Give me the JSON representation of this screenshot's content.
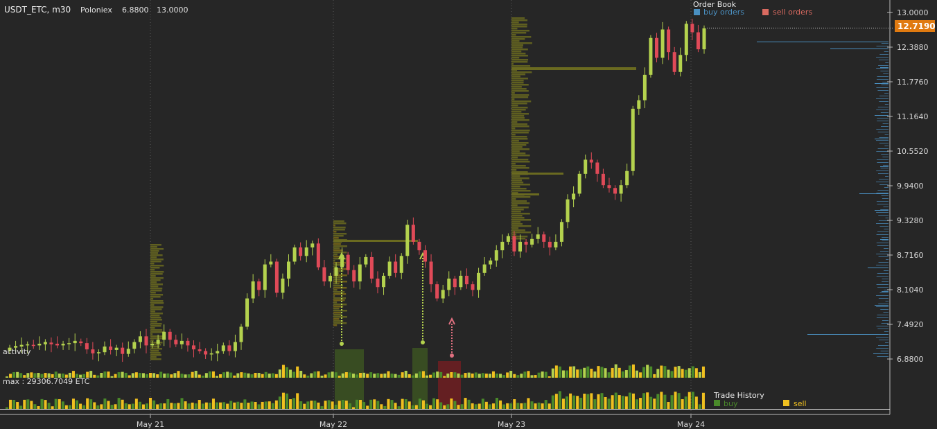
{
  "header": {
    "pair": "USDT_ETC, m30",
    "exchange": "Poloniex",
    "low": "6.8800",
    "high": "13.0000"
  },
  "order_book": {
    "title": "Order Book",
    "buy_label": "buy orders",
    "sell_label": "sell orders",
    "buy_color": "#4a8fc0",
    "sell_color": "#d96a60"
  },
  "trade_history": {
    "title": "Trade History",
    "buy_label": "buy",
    "sell_label": "sell",
    "buy_color": "#4a8a2a",
    "sell_color": "#f0c020"
  },
  "activity_label": "activity",
  "volume_max_label": "max : 29306.7049  ETC",
  "current_price": "12.7190",
  "colors": {
    "background": "#262626",
    "candle_up": "#b4d24e",
    "candle_down": "#e04a58",
    "grid": "#5a5a5a",
    "badge": "#e07a10",
    "profile": "#6a6a20"
  },
  "chart_data": {
    "type": "candlestick",
    "y_ticks": [
      "13.0000",
      "12.3880",
      "11.7760",
      "11.1640",
      "10.5520",
      "9.9400",
      "9.3280",
      "8.7160",
      "8.1040",
      "7.4920",
      "6.8800"
    ],
    "ylim": [
      6.88,
      13.0
    ],
    "x_ticks": [
      "May 21",
      "May 22",
      "May 23",
      "May 24"
    ],
    "candles_open_close": [
      [
        7.03,
        7.08
      ],
      [
        7.08,
        7.11
      ],
      [
        7.1,
        7.13
      ],
      [
        7.12,
        7.14
      ],
      [
        7.13,
        7.11
      ],
      [
        7.12,
        7.15
      ],
      [
        7.14,
        7.18
      ],
      [
        7.17,
        7.14
      ],
      [
        7.15,
        7.12
      ],
      [
        7.12,
        7.15
      ],
      [
        7.15,
        7.16
      ],
      [
        7.16,
        7.2
      ],
      [
        7.19,
        7.16
      ],
      [
        7.16,
        7.05
      ],
      [
        7.05,
        6.98
      ],
      [
        6.98,
        7.0
      ],
      [
        7.0,
        7.1
      ],
      [
        7.1,
        7.04
      ],
      [
        7.04,
        7.08
      ],
      [
        7.08,
        6.97
      ],
      [
        6.97,
        7.06
      ],
      [
        7.06,
        7.18
      ],
      [
        7.18,
        7.28
      ],
      [
        7.28,
        7.12
      ],
      [
        7.12,
        7.15
      ],
      [
        7.15,
        7.22
      ],
      [
        7.22,
        7.36
      ],
      [
        7.36,
        7.22
      ],
      [
        7.22,
        7.14
      ],
      [
        7.14,
        7.2
      ],
      [
        7.2,
        7.12
      ],
      [
        7.12,
        7.05
      ],
      [
        7.05,
        7.02
      ],
      [
        7.02,
        6.96
      ],
      [
        6.96,
        6.98
      ],
      [
        6.98,
        7.02
      ],
      [
        7.02,
        7.12
      ],
      [
        7.12,
        7.02
      ],
      [
        7.02,
        7.18
      ],
      [
        7.18,
        7.45
      ],
      [
        7.45,
        7.95
      ],
      [
        7.95,
        8.25
      ],
      [
        8.25,
        8.1
      ],
      [
        8.1,
        8.55
      ],
      [
        8.55,
        8.6
      ],
      [
        8.6,
        8.05
      ],
      [
        8.05,
        8.3
      ],
      [
        8.3,
        8.6
      ],
      [
        8.6,
        8.85
      ],
      [
        8.85,
        8.7
      ],
      [
        8.7,
        8.85
      ],
      [
        8.85,
        8.92
      ],
      [
        8.92,
        8.5
      ],
      [
        8.5,
        8.25
      ],
      [
        8.25,
        8.35
      ],
      [
        8.35,
        8.5
      ],
      [
        8.5,
        8.72
      ],
      [
        8.72,
        8.45
      ],
      [
        8.45,
        8.25
      ],
      [
        8.25,
        8.55
      ],
      [
        8.55,
        8.68
      ],
      [
        8.68,
        8.3
      ],
      [
        8.3,
        8.15
      ],
      [
        8.15,
        8.35
      ],
      [
        8.35,
        8.6
      ],
      [
        8.6,
        8.4
      ],
      [
        8.4,
        8.7
      ],
      [
        8.7,
        9.25
      ],
      [
        9.25,
        8.95
      ],
      [
        8.95,
        8.8
      ],
      [
        8.8,
        8.6
      ],
      [
        8.6,
        8.2
      ],
      [
        8.2,
        7.95
      ],
      [
        7.95,
        8.1
      ],
      [
        8.1,
        8.3
      ],
      [
        8.3,
        8.15
      ],
      [
        8.15,
        8.35
      ],
      [
        8.35,
        8.2
      ],
      [
        8.2,
        8.1
      ],
      [
        8.1,
        8.4
      ],
      [
        8.4,
        8.55
      ],
      [
        8.55,
        8.62
      ],
      [
        8.62,
        8.8
      ],
      [
        8.8,
        8.95
      ],
      [
        8.95,
        9.05
      ],
      [
        9.05,
        8.78
      ],
      [
        8.78,
        8.95
      ],
      [
        8.95,
        8.9
      ],
      [
        8.9,
        9.0
      ],
      [
        9.0,
        9.08
      ],
      [
        9.08,
        8.95
      ],
      [
        8.95,
        8.85
      ],
      [
        8.85,
        8.95
      ],
      [
        8.95,
        9.3
      ],
      [
        9.3,
        9.7
      ],
      [
        9.7,
        9.8
      ],
      [
        9.8,
        10.15
      ],
      [
        10.15,
        10.4
      ],
      [
        10.4,
        10.35
      ],
      [
        10.35,
        10.15
      ],
      [
        10.15,
        9.95
      ],
      [
        9.95,
        9.9
      ],
      [
        9.9,
        9.8
      ],
      [
        9.8,
        9.95
      ],
      [
        9.95,
        10.2
      ],
      [
        10.2,
        11.3
      ],
      [
        11.3,
        11.45
      ],
      [
        11.45,
        11.9
      ],
      [
        11.9,
        12.55
      ],
      [
        12.55,
        12.2
      ],
      [
        12.2,
        12.7
      ],
      [
        12.7,
        12.3
      ],
      [
        12.3,
        11.95
      ],
      [
        11.95,
        12.25
      ],
      [
        12.25,
        12.8
      ],
      [
        12.8,
        12.65
      ],
      [
        12.65,
        12.35
      ],
      [
        12.35,
        12.72
      ]
    ]
  }
}
